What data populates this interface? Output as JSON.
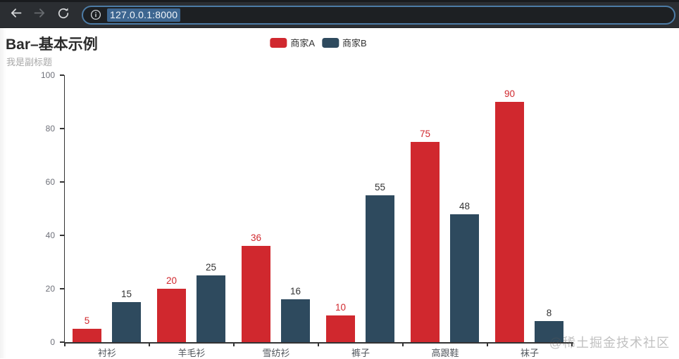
{
  "browser": {
    "url": "127.0.0.1:8000",
    "icons": {
      "back": "back-arrow",
      "forward": "forward-arrow",
      "reload": "reload",
      "site_info": "info-circle"
    },
    "colors": {
      "toolbar_bg": "#2b2e32",
      "urlbar_bg": "#1d2023",
      "focus_ring": "#4d7ca6",
      "selection_bg": "#3d6690"
    }
  },
  "page": {
    "title": "Bar–基本示例",
    "subtitle": "我是副标题",
    "watermark": "@稀土掘金技术社区"
  },
  "chart_data": {
    "type": "bar",
    "title": "Bar–基本示例",
    "subtitle": "我是副标题",
    "categories": [
      "衬衫",
      "羊毛衫",
      "雪纺衫",
      "裤子",
      "高跟鞋",
      "袜子"
    ],
    "series": [
      {
        "name": "商家A",
        "color": "#d0282e",
        "label_color": "#d0282e",
        "values": [
          5,
          20,
          36,
          10,
          75,
          90
        ]
      },
      {
        "name": "商家B",
        "color": "#2e4a5e",
        "label_color": "#333333",
        "values": [
          15,
          25,
          16,
          55,
          48,
          8
        ]
      }
    ],
    "xlabel": "",
    "ylabel": "",
    "ylim": [
      0,
      100
    ],
    "yticks": [
      0,
      20,
      40,
      60,
      80,
      100
    ],
    "grid": false,
    "legend_position": "top-center",
    "value_labels": true
  }
}
